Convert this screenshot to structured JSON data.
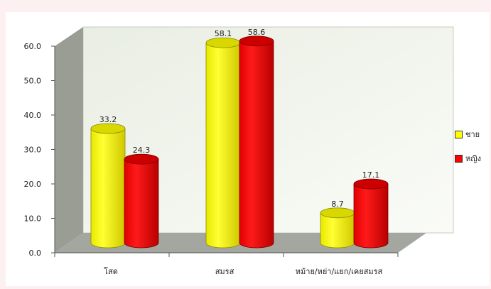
{
  "chart_data": {
    "type": "bar",
    "categories": [
      "โสด",
      "สมรส",
      "หม้าย/หย่า/แยก/เคยสมรส"
    ],
    "series": [
      {
        "name": "ชาย",
        "values": [
          33.2,
          58.1,
          8.7
        ],
        "color": "#ffff00"
      },
      {
        "name": "หญิง",
        "values": [
          24.3,
          58.6,
          17.1
        ],
        "color": "#ff0000"
      }
    ],
    "ylim": [
      0,
      60
    ],
    "yticks": [
      "0.0",
      "10.0",
      "20.0",
      "30.0",
      "40.0",
      "50.0",
      "60.0"
    ],
    "grid": false,
    "legend_position": "right",
    "style": "3d-cylinder"
  },
  "legend": {
    "male": "ชาย",
    "female": "หญิง"
  },
  "colors": {
    "male": "#ffff00",
    "female": "#ff0000",
    "back_wall": "#eef2e8",
    "side_wall": "#9a9d94",
    "floor": "#a4a7a0"
  }
}
